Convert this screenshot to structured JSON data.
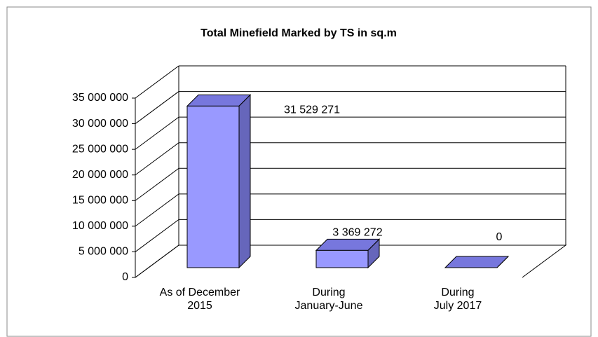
{
  "chart_data": {
    "type": "bar3d",
    "title": "Total Minefield Marked by TS in sq.m",
    "categories": [
      "As of December\n2015",
      "During\nJanuary-June",
      "During\nJuly 2017"
    ],
    "values": [
      31529271,
      3369272,
      0
    ],
    "value_labels": [
      "31 529 271",
      "3 369 272",
      "0"
    ],
    "color": "#9999ff",
    "ylim": [
      0,
      35000000
    ],
    "yticks": [
      0,
      {
        "value": 5000000,
        "label": "5 000 000"
      },
      {
        "value": 10000000,
        "label": "10 000 000"
      },
      {
        "value": 15000000,
        "label": "15 000 000"
      },
      {
        "value": 20000000,
        "label": "20 000 000"
      },
      {
        "value": 25000000,
        "label": "25 000 000"
      },
      {
        "value": 30000000,
        "label": "30 000 000"
      },
      {
        "value": 35000000,
        "label": "35 000 000"
      }
    ],
    "grid": true
  }
}
